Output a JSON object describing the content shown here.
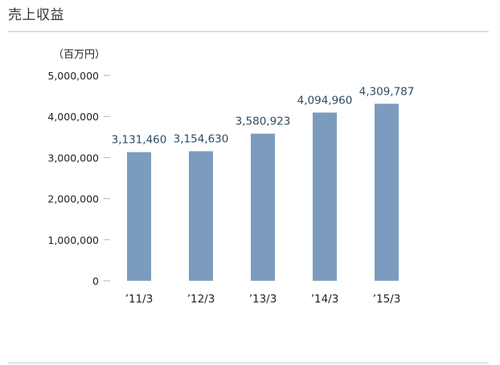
{
  "page": {
    "title": "売上収益"
  },
  "chart_data": {
    "type": "bar",
    "title": "売上収益",
    "unit_label": "（百万円）",
    "categories": [
      "’11/3",
      "’12/3",
      "’13/3",
      "’14/3",
      "’15/3"
    ],
    "values": [
      3131460,
      3154630,
      3580923,
      4094960,
      4309787
    ],
    "value_labels": [
      "3,131,460",
      "3,154,630",
      "3,580,923",
      "4,094,960",
      "4,309,787"
    ],
    "yticks": [
      0,
      1000000,
      2000000,
      3000000,
      4000000,
      5000000
    ],
    "ytick_labels": [
      "0",
      "1,000,000",
      "2,000,000",
      "3,000,000",
      "4,000,000",
      "5,000,000"
    ],
    "ylim": [
      0,
      5000000
    ],
    "grid": false,
    "legend": "none",
    "colors": {
      "bar": "#7b9cbe",
      "value_label": "#2c4c66",
      "axis_tick": "#b0b0b0"
    }
  }
}
